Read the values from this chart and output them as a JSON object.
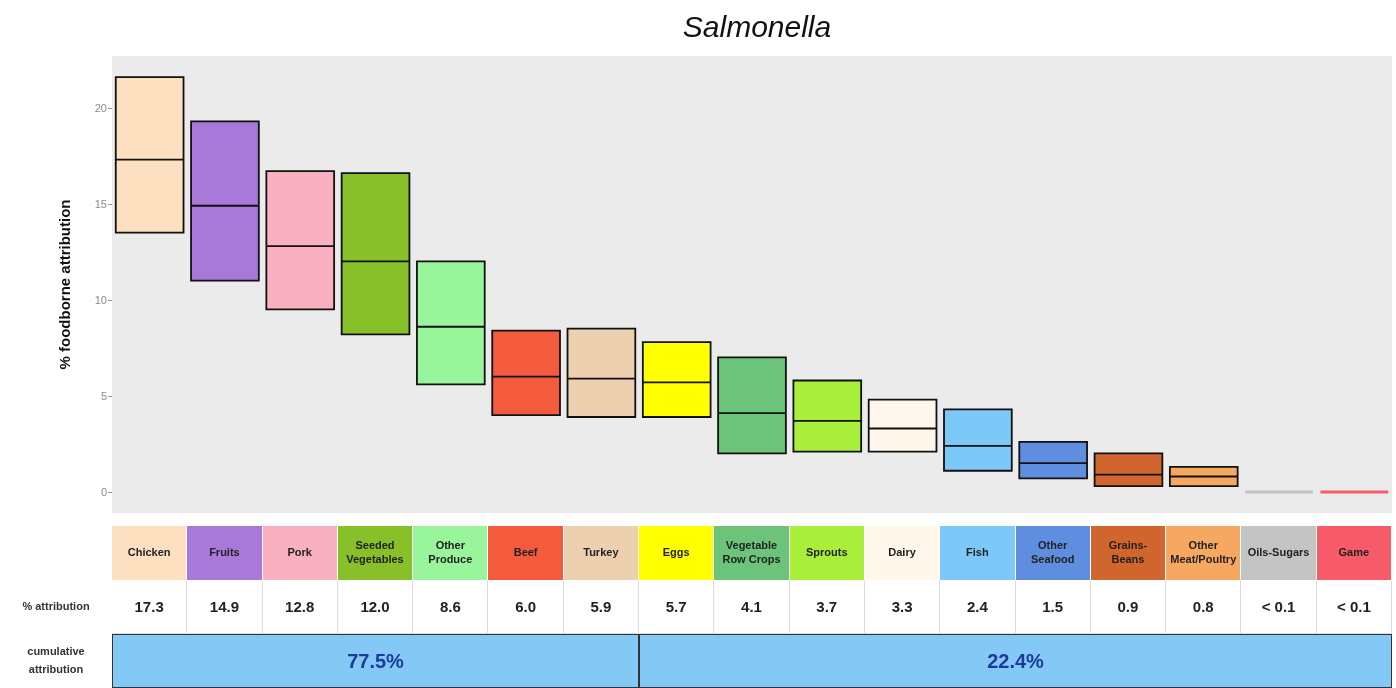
{
  "chart_data": {
    "type": "box",
    "title": "Salmonella",
    "ylabel": "% foodborne attribution",
    "categories": [
      "Chicken",
      "Fruits",
      "Pork",
      "Seeded Vegetables",
      "Other Produce",
      "Beef",
      "Turkey",
      "Eggs",
      "Vegetable Row Crops",
      "Sprouts",
      "Dairy",
      "Fish",
      "Other Seafood",
      "Grains-Beans",
      "Other Meat/Poultry",
      "Oils-Sugars",
      "Game"
    ],
    "boxes": [
      {
        "low": 13.5,
        "q1": 13.5,
        "median": 17.3,
        "q3": 21.6,
        "high": 21.6
      },
      {
        "low": 11.0,
        "q1": 11.0,
        "median": 14.9,
        "q3": 19.3,
        "high": 19.3
      },
      {
        "low": 9.5,
        "q1": 9.5,
        "median": 12.8,
        "q3": 16.7,
        "high": 16.7
      },
      {
        "low": 8.2,
        "q1": 8.2,
        "median": 12.0,
        "q3": 16.6,
        "high": 16.6
      },
      {
        "low": 5.6,
        "q1": 5.6,
        "median": 8.6,
        "q3": 12.0,
        "high": 12.0
      },
      {
        "low": 4.0,
        "q1": 4.0,
        "median": 6.0,
        "q3": 8.4,
        "high": 8.4
      },
      {
        "low": 3.9,
        "q1": 3.9,
        "median": 5.9,
        "q3": 8.5,
        "high": 8.5
      },
      {
        "low": 3.9,
        "q1": 3.9,
        "median": 5.7,
        "q3": 7.8,
        "high": 7.8
      },
      {
        "low": 2.0,
        "q1": 2.0,
        "median": 4.1,
        "q3": 7.0,
        "high": 7.0
      },
      {
        "low": 2.1,
        "q1": 2.1,
        "median": 3.7,
        "q3": 5.8,
        "high": 5.8
      },
      {
        "low": 2.1,
        "q1": 2.1,
        "median": 3.3,
        "q3": 4.8,
        "high": 4.8
      },
      {
        "low": 1.1,
        "q1": 1.1,
        "median": 2.4,
        "q3": 4.3,
        "high": 4.3
      },
      {
        "low": 0.7,
        "q1": 0.7,
        "median": 1.5,
        "q3": 2.6,
        "high": 2.6
      },
      {
        "low": 0.3,
        "q1": 0.3,
        "median": 0.9,
        "q3": 2.0,
        "high": 2.0
      },
      {
        "low": 0.3,
        "q1": 0.3,
        "median": 0.8,
        "q3": 1.3,
        "high": 1.3
      },
      {
        "low": 0,
        "q1": 0,
        "median": 0,
        "q3": 0,
        "high": 0
      },
      {
        "low": 0,
        "q1": 0,
        "median": 0,
        "q3": 0,
        "high": 0
      }
    ],
    "colors": [
      "#fde0bf",
      "#a879d8",
      "#f9b0c0",
      "#88c02a",
      "#98f59b",
      "#f45a3c",
      "#ecd0b0",
      "#ffff00",
      "#6cc47a",
      "#a8ee3a",
      "#fff6ec",
      "#7cc8f8",
      "#5f8ee0",
      "#d0652e",
      "#f6a860",
      "#c4c4c4",
      "#f75a68"
    ],
    "value_labels": [
      "17.3",
      "14.9",
      "12.8",
      "12.0",
      "8.6",
      "6.0",
      "5.9",
      "5.7",
      "4.1",
      "3.7",
      "3.3",
      "2.4",
      "1.5",
      "0.9",
      "0.8",
      "< 0.1",
      "< 0.1"
    ],
    "ylim": [
      -1.1,
      22.7
    ],
    "yticks": [
      0,
      5,
      10,
      15,
      20
    ],
    "annotations": [
      "% attribution",
      "cumulative attribution",
      "77.5%",
      "22.4%"
    ]
  }
}
